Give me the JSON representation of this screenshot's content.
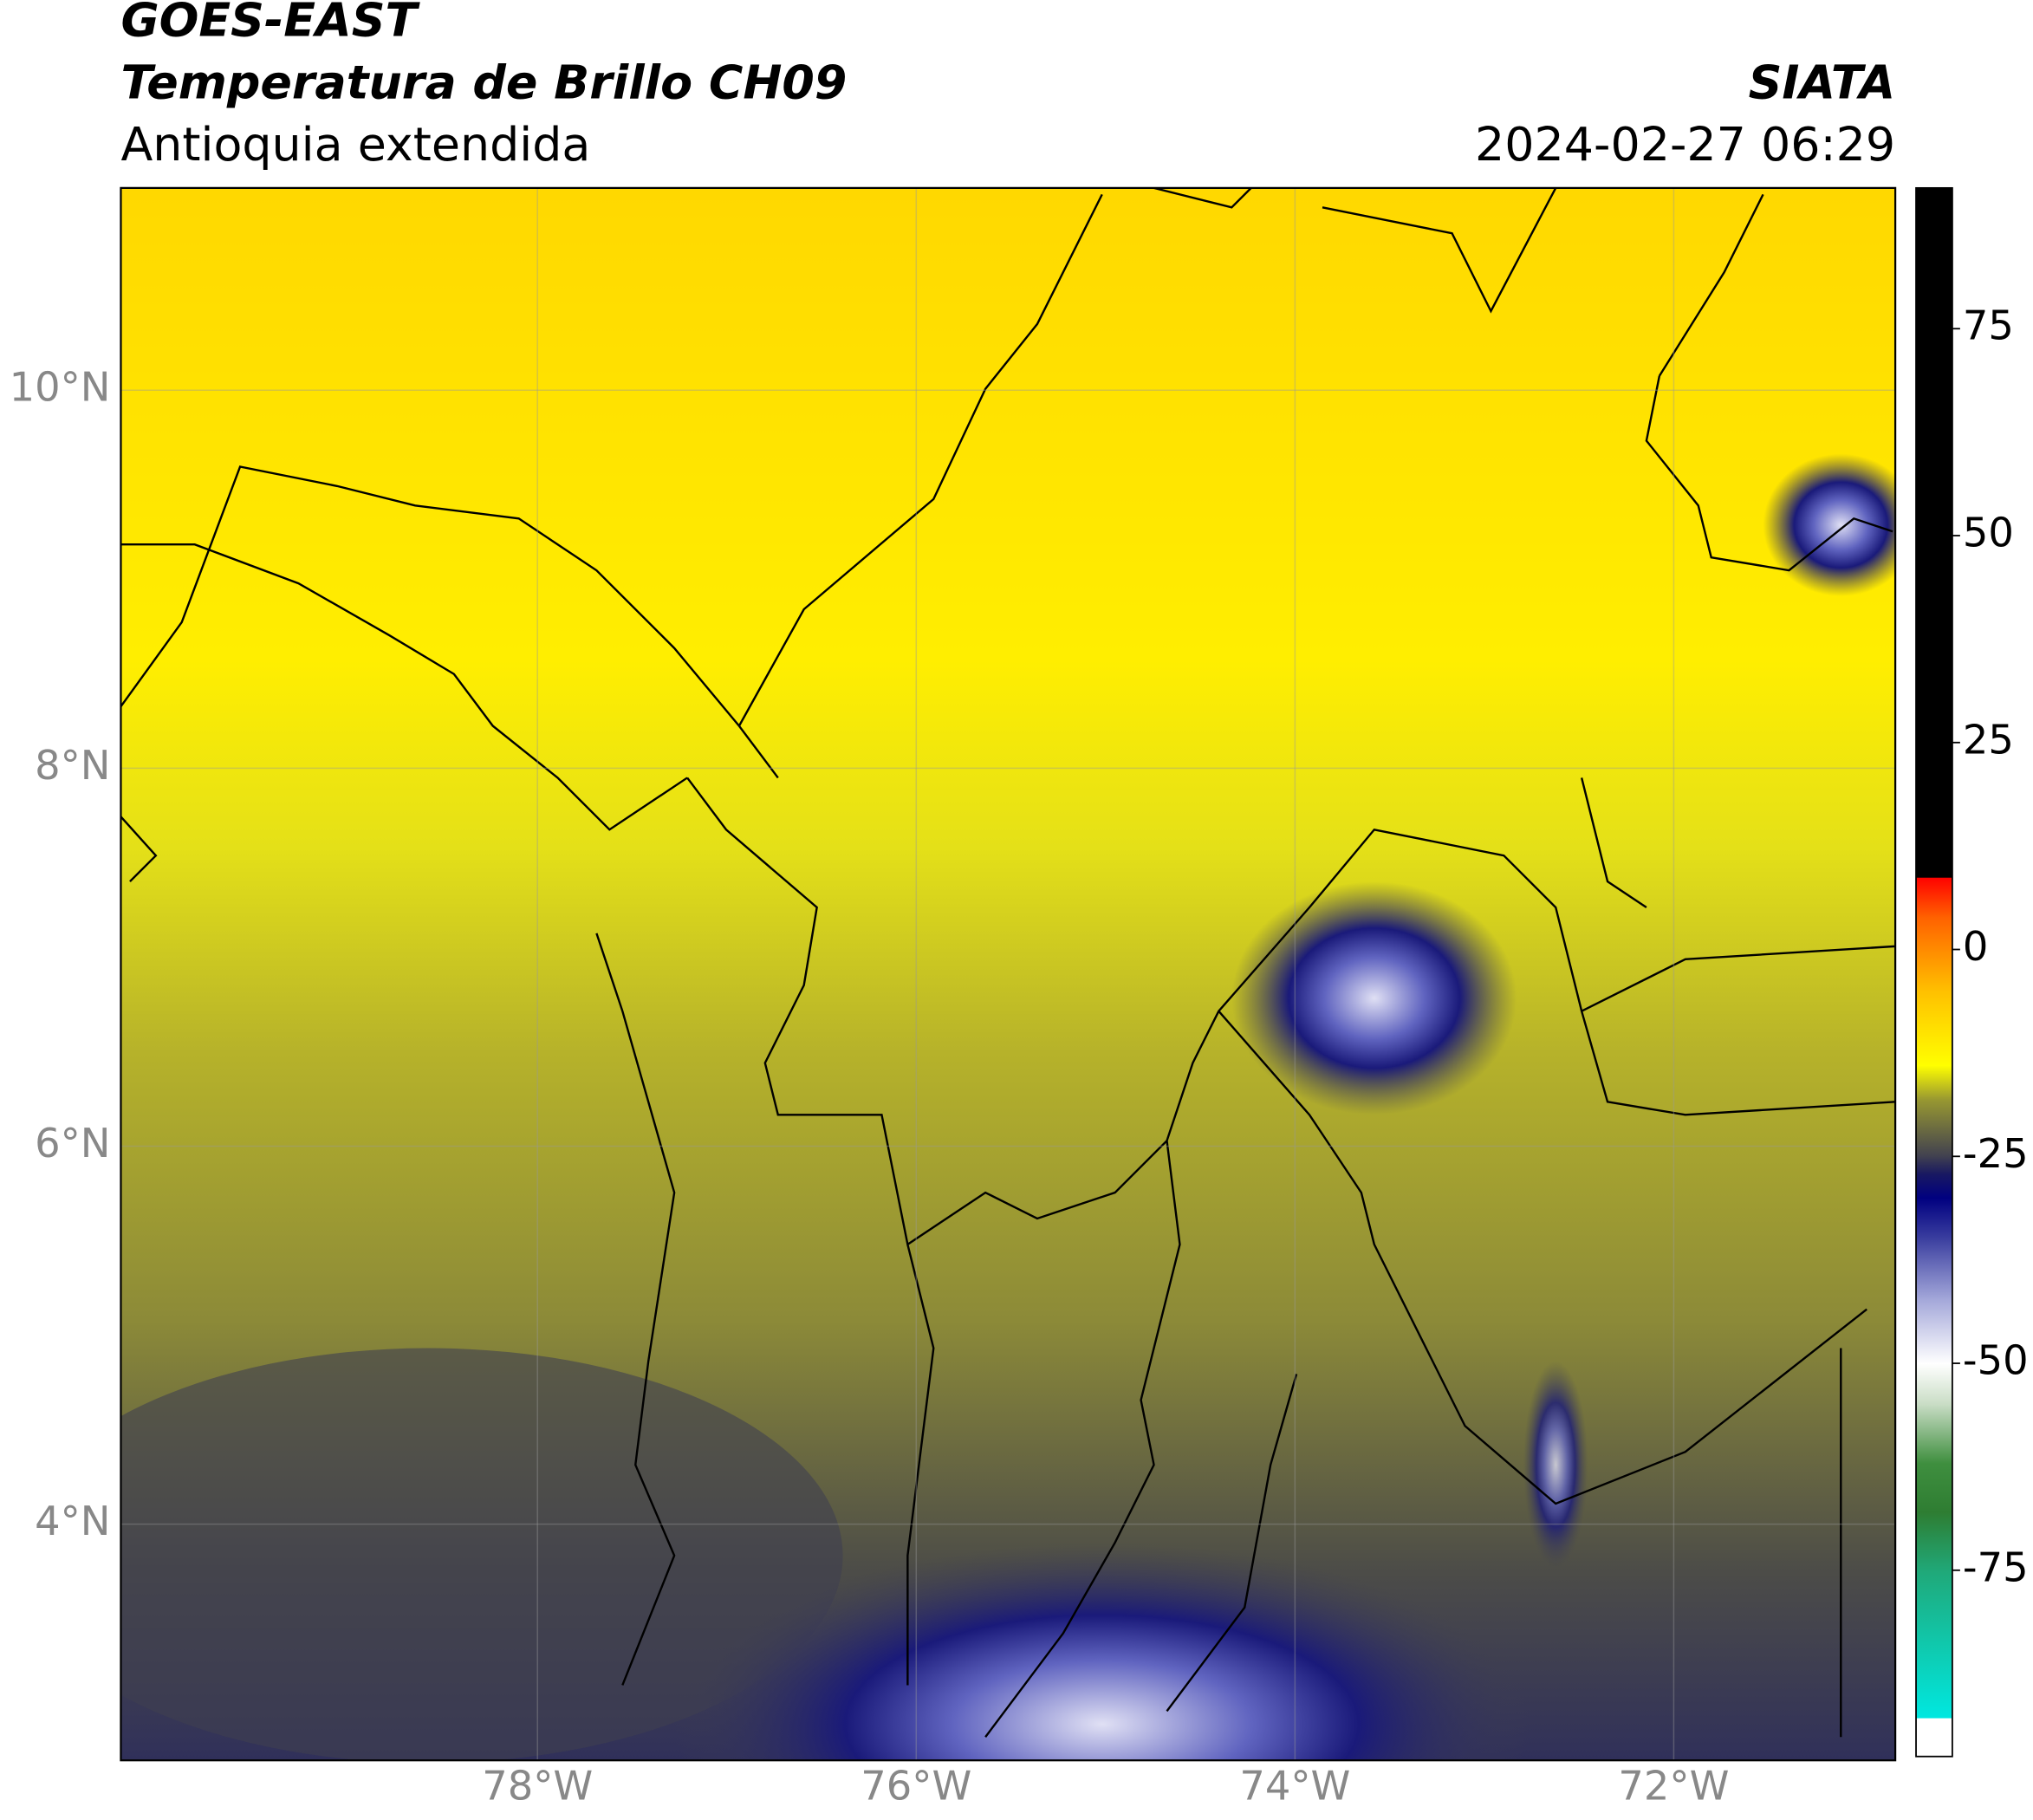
{
  "header": {
    "title1": "GOES-EAST",
    "title2": "Temperatura de Brillo CH09",
    "subtitle": "Antioquia extendida",
    "org": "SIATA",
    "datetime": "2024-02-27 06:29"
  },
  "map": {
    "xlim": [
      -80.2,
      -70.83
    ],
    "ylim": [
      2.75,
      11.07
    ],
    "xticks": [
      {
        "value": -78,
        "label": "78°W"
      },
      {
        "value": -76,
        "label": "76°W"
      },
      {
        "value": -74,
        "label": "74°W"
      },
      {
        "value": -72,
        "label": "72°W"
      }
    ],
    "yticks": [
      {
        "value": 10,
        "label": "10°N"
      },
      {
        "value": 8,
        "label": "8°N"
      },
      {
        "value": 6,
        "label": "6°N"
      },
      {
        "value": 4,
        "label": "4°N"
      }
    ],
    "grid": true
  },
  "colorbar": {
    "lim": [
      -97.5,
      92
    ],
    "ticks": [
      75,
      50,
      25,
      0,
      -25,
      -50,
      -75
    ],
    "stops": [
      {
        "value": -97.5,
        "color": "#ffffff"
      },
      {
        "value": -92.8,
        "color": "#ffffff"
      },
      {
        "value": -92.8,
        "color": "#00e8e0"
      },
      {
        "value": -75,
        "color": "#20a878"
      },
      {
        "value": -68,
        "color": "#2e7d32"
      },
      {
        "value": -62,
        "color": "#3f8f3f"
      },
      {
        "value": -55,
        "color": "#c8dcc4"
      },
      {
        "value": -50,
        "color": "#ffffff"
      },
      {
        "value": -42,
        "color": "#a0a4d8"
      },
      {
        "value": -35,
        "color": "#3c40a0"
      },
      {
        "value": -30,
        "color": "#000080"
      },
      {
        "value": -27,
        "color": "#1a1a60"
      },
      {
        "value": -25,
        "color": "#404050"
      },
      {
        "value": -18,
        "color": "#9a9a30"
      },
      {
        "value": -14,
        "color": "#ffff00"
      },
      {
        "value": -5,
        "color": "#ffc000"
      },
      {
        "value": 4,
        "color": "#ff6000"
      },
      {
        "value": 8.75,
        "color": "#ff0000"
      },
      {
        "value": 8.75,
        "color": "#000000"
      },
      {
        "value": 92,
        "color": "#000000"
      }
    ]
  }
}
